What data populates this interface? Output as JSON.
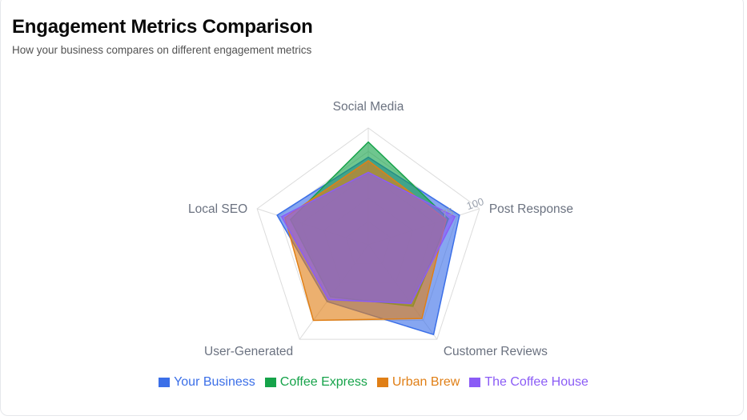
{
  "header": {
    "title": "Engagement Metrics Comparison",
    "subtitle": "How your business compares on different engagement metrics"
  },
  "chart_data": {
    "type": "radar",
    "axes": [
      "Social Media",
      "Post Response",
      "Customer Reviews",
      "User-Generated",
      "Local SEO"
    ],
    "rmax": 100,
    "radial_tick_labels": [
      "75",
      "100"
    ],
    "series": [
      {
        "name": "Your Business",
        "color": "#3b6fe8",
        "values": [
          75,
          82,
          95,
          60,
          82
        ]
      },
      {
        "name": "Coffee Express",
        "color": "#16a34a",
        "values": [
          88,
          72,
          65,
          55,
          70
        ]
      },
      {
        "name": "Urban Brew",
        "color": "#e07f16",
        "values": [
          72,
          70,
          78,
          80,
          75
        ]
      },
      {
        "name": "The Coffee House",
        "color": "#8b5cf6",
        "values": [
          62,
          78,
          62,
          58,
          78
        ]
      }
    ]
  }
}
